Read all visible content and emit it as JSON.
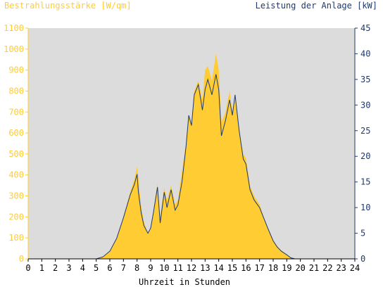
{
  "chart_data": {
    "type": "area",
    "left_axis_title": "Bestrahlungsstärke [W/qm]",
    "right_axis_title": "Leistung der Anlage [kW]",
    "xlabel": "Uhrzeit in Stunden",
    "x_ticks": [
      "0",
      "1",
      "2",
      "3",
      "4",
      "5",
      "6",
      "7",
      "8",
      "9",
      "10",
      "11",
      "12",
      "13",
      "14",
      "15",
      "16",
      "17",
      "18",
      "19",
      "20",
      "21",
      "22",
      "23",
      "24"
    ],
    "y_left_ticks": [
      "0",
      "100",
      "200",
      "300",
      "400",
      "500",
      "600",
      "700",
      "800",
      "900",
      "1000",
      "1100"
    ],
    "y_right_ticks": [
      "0",
      "5",
      "10",
      "15",
      "20",
      "25",
      "30",
      "35",
      "40",
      "45"
    ],
    "xlim": [
      0,
      24
    ],
    "ylim_left": [
      0,
      1100
    ],
    "ylim_right": [
      0,
      45
    ],
    "grid": false,
    "colors": {
      "irradiance": "#ffcc33",
      "power": "#1f3a6e",
      "plot_bg": "#dcdcdc",
      "left_axis": "#ffcc33",
      "right_axis": "#1f3a6e"
    },
    "series": [
      {
        "name": "Bestrahlungsstärke [W/qm]",
        "axis": "left",
        "x": [
          0,
          5.0,
          5.5,
          6.0,
          6.5,
          7.0,
          7.5,
          7.8,
          8.0,
          8.1,
          8.3,
          8.5,
          8.8,
          9.0,
          9.2,
          9.5,
          9.7,
          10.0,
          10.2,
          10.5,
          10.8,
          11.0,
          11.3,
          11.6,
          11.8,
          12.0,
          12.2,
          12.5,
          12.8,
          13.0,
          13.2,
          13.5,
          13.8,
          14.0,
          14.2,
          14.5,
          14.8,
          15.0,
          15.2,
          15.5,
          15.8,
          16.0,
          16.3,
          16.6,
          17.0,
          17.3,
          17.6,
          18.0,
          18.3,
          18.6,
          19.0,
          19.3,
          19.6,
          20.0,
          24
        ],
        "values": [
          0,
          0,
          10,
          40,
          100,
          200,
          320,
          380,
          440,
          380,
          250,
          180,
          120,
          150,
          230,
          360,
          200,
          340,
          280,
          350,
          260,
          280,
          420,
          550,
          680,
          650,
          800,
          850,
          760,
          900,
          920,
          850,
          980,
          900,
          650,
          700,
          800,
          700,
          780,
          620,
          500,
          480,
          350,
          300,
          260,
          200,
          150,
          90,
          60,
          40,
          20,
          5,
          0,
          0,
          0
        ]
      },
      {
        "name": "Leistung der Anlage [kW]",
        "axis": "right",
        "x": [
          0,
          5.0,
          5.5,
          6.0,
          6.5,
          7.0,
          7.5,
          7.8,
          8.0,
          8.1,
          8.3,
          8.5,
          8.8,
          9.0,
          9.2,
          9.5,
          9.7,
          10.0,
          10.2,
          10.5,
          10.8,
          11.0,
          11.3,
          11.6,
          11.8,
          12.0,
          12.2,
          12.5,
          12.8,
          13.0,
          13.2,
          13.5,
          13.8,
          14.0,
          14.2,
          14.5,
          14.8,
          15.0,
          15.2,
          15.5,
          15.8,
          16.0,
          16.3,
          16.6,
          17.0,
          17.3,
          17.6,
          18.0,
          18.3,
          18.6,
          19.0,
          19.3,
          19.6,
          20.0,
          24
        ],
        "values": [
          0,
          0,
          0.4,
          1.5,
          4,
          8,
          12.5,
          14.5,
          16.5,
          13,
          9,
          6.5,
          5,
          6,
          9,
          14,
          7,
          13,
          10,
          13.5,
          9.5,
          10.5,
          15,
          22,
          28,
          26,
          32,
          34,
          29,
          33,
          35,
          32,
          36,
          33,
          24,
          27,
          31,
          28,
          32,
          25,
          19.5,
          18.5,
          13.5,
          11.5,
          10,
          8,
          6,
          3.5,
          2.3,
          1.5,
          0.8,
          0.2,
          0,
          0,
          0
        ]
      }
    ]
  }
}
